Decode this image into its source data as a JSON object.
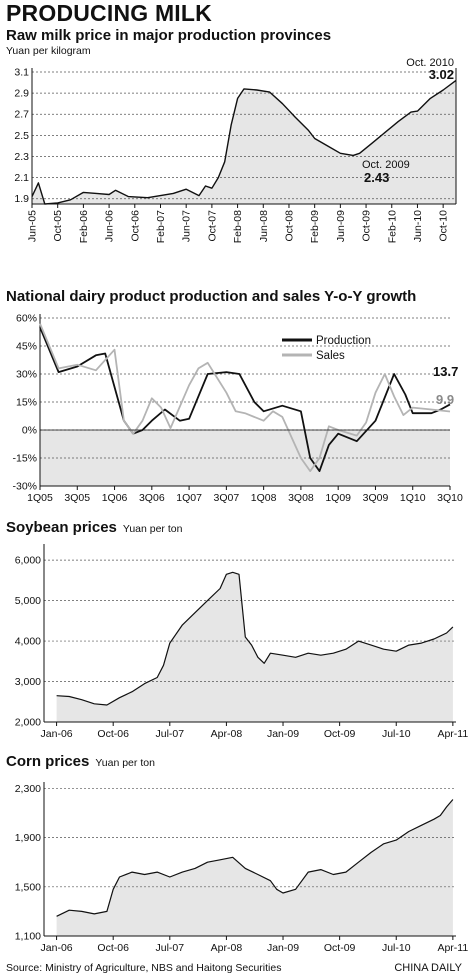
{
  "title": "PRODUCING MILK",
  "source": "Source: Ministry of Agriculture, NBS and Haitong Securities",
  "credit": "CHINA DAILY",
  "colors": {
    "fill": "#e6e6e6",
    "line": "#111111",
    "sales": "#b4b4b4",
    "grid": "#555555"
  },
  "chart_data": [
    {
      "type": "area",
      "title": "Raw milk price in major production provinces",
      "unit": "Yuan per kilogram",
      "ylim": [
        1.85,
        3.1
      ],
      "yticks": [
        "1.9",
        "2.1",
        "2.3",
        "2.5",
        "2.7",
        "2.9",
        "3.1"
      ],
      "yticks_values": [
        1.9,
        2.1,
        2.3,
        2.5,
        2.7,
        2.9,
        3.1
      ],
      "x_labels": [
        "Jun-05",
        "Oct-05",
        "Feb-06",
        "Jun-06",
        "Oct-06",
        "Feb-07",
        "Jun-07",
        "Oct-07",
        "Feb-08",
        "Jun-08",
        "Oct-08",
        "Feb-09",
        "Jun-09",
        "Oct-09",
        "Feb-10",
        "Jun-10",
        "Oct-10"
      ],
      "x_months_offset": [
        0,
        4,
        8,
        12,
        16,
        20,
        24,
        28,
        32,
        36,
        40,
        44,
        48,
        52,
        56,
        60,
        64
      ],
      "series": [
        {
          "points": [
            [
              0,
              1.92
            ],
            [
              1,
              2.05
            ],
            [
              2,
              1.85
            ],
            [
              4,
              1.86
            ],
            [
              6,
              1.89
            ],
            [
              8,
              1.96
            ],
            [
              10,
              1.95
            ],
            [
              12,
              1.94
            ],
            [
              13,
              1.98
            ],
            [
              15,
              1.92
            ],
            [
              18,
              1.91
            ],
            [
              20,
              1.93
            ],
            [
              22,
              1.95
            ],
            [
              24,
              1.99
            ],
            [
              26,
              1.93
            ],
            [
              27,
              2.02
            ],
            [
              28,
              2.0
            ],
            [
              29,
              2.1
            ],
            [
              30,
              2.25
            ],
            [
              31,
              2.6
            ],
            [
              32,
              2.85
            ],
            [
              33,
              2.94
            ],
            [
              35,
              2.93
            ],
            [
              37,
              2.91
            ],
            [
              39,
              2.8
            ],
            [
              41,
              2.67
            ],
            [
              43,
              2.55
            ],
            [
              44,
              2.47
            ],
            [
              46,
              2.4
            ],
            [
              48,
              2.33
            ],
            [
              50,
              2.31
            ],
            [
              51,
              2.33
            ],
            [
              53,
              2.43
            ],
            [
              55,
              2.53
            ],
            [
              57,
              2.63
            ],
            [
              59,
              2.72
            ],
            [
              60,
              2.73
            ],
            [
              62,
              2.85
            ],
            [
              64,
              2.93
            ],
            [
              66,
              3.02
            ]
          ]
        }
      ],
      "annotations": [
        {
          "label": "Oct. 2010",
          "value": "3.02"
        },
        {
          "label": "Oct. 2009",
          "value": "2.43"
        }
      ]
    },
    {
      "type": "line",
      "title": "National dairy product production and sales Y-o-Y growth",
      "ylim": [
        -30,
        60
      ],
      "yticks": [
        "60%",
        "45%",
        "30%",
        "15%",
        "0%",
        "-15%",
        "-30%"
      ],
      "yticks_values": [
        60,
        45,
        30,
        15,
        0,
        -15,
        -30
      ],
      "x_labels": [
        "1Q05",
        "3Q05",
        "1Q06",
        "3Q06",
        "1Q07",
        "3Q07",
        "1Q08",
        "3Q08",
        "1Q09",
        "3Q09",
        "1Q10",
        "3Q10"
      ],
      "x_quarters_offset": [
        0,
        2,
        4,
        6,
        8,
        10,
        12,
        14,
        16,
        18,
        20,
        22
      ],
      "legend": [
        "Production",
        "Sales"
      ],
      "legend_position": "top-right",
      "series": [
        {
          "name": "Production",
          "points": [
            [
              0,
              55
            ],
            [
              1,
              31
            ],
            [
              2,
              34
            ],
            [
              3,
              40
            ],
            [
              3.5,
              41
            ],
            [
              4.5,
              5
            ],
            [
              5,
              -2
            ],
            [
              5.5,
              0
            ],
            [
              6,
              5
            ],
            [
              6.7,
              11
            ],
            [
              7.5,
              5
            ],
            [
              8,
              6
            ],
            [
              9,
              30
            ],
            [
              10,
              31
            ],
            [
              10.7,
              30
            ],
            [
              11.5,
              15
            ],
            [
              12,
              10
            ],
            [
              13,
              13
            ],
            [
              14,
              10
            ],
            [
              14.5,
              -15
            ],
            [
              15,
              -22
            ],
            [
              15.5,
              -8
            ],
            [
              16,
              -2
            ],
            [
              17,
              -6
            ],
            [
              18,
              5
            ],
            [
              19,
              30
            ],
            [
              19.6,
              19
            ],
            [
              20,
              9
            ],
            [
              21,
              9
            ],
            [
              21.5,
              11
            ],
            [
              22,
              13.7
            ]
          ]
        },
        {
          "name": "Sales",
          "points": [
            [
              0,
              57
            ],
            [
              1,
              33
            ],
            [
              2,
              35
            ],
            [
              3,
              32
            ],
            [
              4,
              43
            ],
            [
              4.5,
              5
            ],
            [
              5,
              -2
            ],
            [
              5.5,
              5
            ],
            [
              6,
              17
            ],
            [
              6.5,
              12
            ],
            [
              7,
              1
            ],
            [
              8,
              24
            ],
            [
              8.5,
              33
            ],
            [
              9,
              36
            ],
            [
              10,
              20
            ],
            [
              10.5,
              10
            ],
            [
              11,
              9
            ],
            [
              12,
              5
            ],
            [
              12.5,
              10
            ],
            [
              13,
              7
            ],
            [
              14,
              -15
            ],
            [
              14.5,
              -22
            ],
            [
              15,
              -15
            ],
            [
              15.5,
              2
            ],
            [
              16,
              0
            ],
            [
              17,
              -3
            ],
            [
              17.5,
              4
            ],
            [
              18,
              20
            ],
            [
              18.5,
              30
            ],
            [
              19,
              18
            ],
            [
              19.5,
              8
            ],
            [
              20,
              12
            ],
            [
              21,
              11
            ],
            [
              22,
              9.9
            ]
          ]
        }
      ],
      "end_labels": [
        "13.7",
        "9.9"
      ]
    },
    {
      "type": "area",
      "title": "Soybean prices",
      "unit": "Yuan per ton",
      "ylim": [
        2000,
        6300
      ],
      "yticks": [
        "2,000",
        "3,000",
        "4,000",
        "5,000",
        "6,000"
      ],
      "yticks_values": [
        2000,
        3000,
        4000,
        5000,
        6000
      ],
      "x_labels": [
        "Jan-06",
        "Oct-06",
        "Jul-07",
        "Apr-08",
        "Jan-09",
        "Oct-09",
        "Jul-10",
        "Apr-11"
      ],
      "x_months_offset": [
        0,
        9,
        18,
        27,
        36,
        45,
        54,
        63
      ],
      "series": [
        {
          "points": [
            [
              0,
              2650
            ],
            [
              2,
              2630
            ],
            [
              4,
              2550
            ],
            [
              6,
              2450
            ],
            [
              8,
              2420
            ],
            [
              10,
              2600
            ],
            [
              12,
              2750
            ],
            [
              14,
              2950
            ],
            [
              16,
              3100
            ],
            [
              17,
              3400
            ],
            [
              18,
              3950
            ],
            [
              20,
              4400
            ],
            [
              22,
              4700
            ],
            [
              24,
              5000
            ],
            [
              26,
              5300
            ],
            [
              27,
              5650
            ],
            [
              28,
              5700
            ],
            [
              29,
              5650
            ],
            [
              30,
              4100
            ],
            [
              31,
              3900
            ],
            [
              32,
              3600
            ],
            [
              33,
              3450
            ],
            [
              34,
              3700
            ],
            [
              36,
              3650
            ],
            [
              38,
              3600
            ],
            [
              40,
              3700
            ],
            [
              42,
              3650
            ],
            [
              44,
              3700
            ],
            [
              46,
              3800
            ],
            [
              48,
              4000
            ],
            [
              50,
              3900
            ],
            [
              52,
              3800
            ],
            [
              54,
              3750
            ],
            [
              56,
              3900
            ],
            [
              58,
              3950
            ],
            [
              60,
              4050
            ],
            [
              62,
              4200
            ],
            [
              63,
              4350
            ]
          ]
        }
      ]
    },
    {
      "type": "area",
      "title": "Corn prices",
      "unit": "Yuan per ton",
      "ylim": [
        1100,
        2320
      ],
      "yticks": [
        "1,100",
        "1,500",
        "1,900",
        "2,300"
      ],
      "yticks_values": [
        1100,
        1500,
        1900,
        2300
      ],
      "x_labels": [
        "Jan-06",
        "Oct-06",
        "Jul-07",
        "Apr-08",
        "Jan-09",
        "Oct-09",
        "Jul-10",
        "Apr-11"
      ],
      "x_months_offset": [
        0,
        9,
        18,
        27,
        36,
        45,
        54,
        63
      ],
      "series": [
        {
          "points": [
            [
              0,
              1260
            ],
            [
              2,
              1310
            ],
            [
              4,
              1300
            ],
            [
              6,
              1280
            ],
            [
              8,
              1300
            ],
            [
              9,
              1480
            ],
            [
              10,
              1580
            ],
            [
              12,
              1620
            ],
            [
              14,
              1600
            ],
            [
              16,
              1620
            ],
            [
              18,
              1580
            ],
            [
              20,
              1620
            ],
            [
              22,
              1650
            ],
            [
              24,
              1700
            ],
            [
              26,
              1720
            ],
            [
              28,
              1740
            ],
            [
              30,
              1650
            ],
            [
              32,
              1600
            ],
            [
              34,
              1550
            ],
            [
              35,
              1480
            ],
            [
              36,
              1450
            ],
            [
              38,
              1480
            ],
            [
              40,
              1620
            ],
            [
              42,
              1640
            ],
            [
              44,
              1600
            ],
            [
              46,
              1620
            ],
            [
              48,
              1700
            ],
            [
              50,
              1780
            ],
            [
              52,
              1850
            ],
            [
              54,
              1880
            ],
            [
              56,
              1950
            ],
            [
              58,
              2000
            ],
            [
              60,
              2050
            ],
            [
              61,
              2080
            ],
            [
              62,
              2150
            ],
            [
              63,
              2210
            ]
          ]
        }
      ]
    }
  ]
}
